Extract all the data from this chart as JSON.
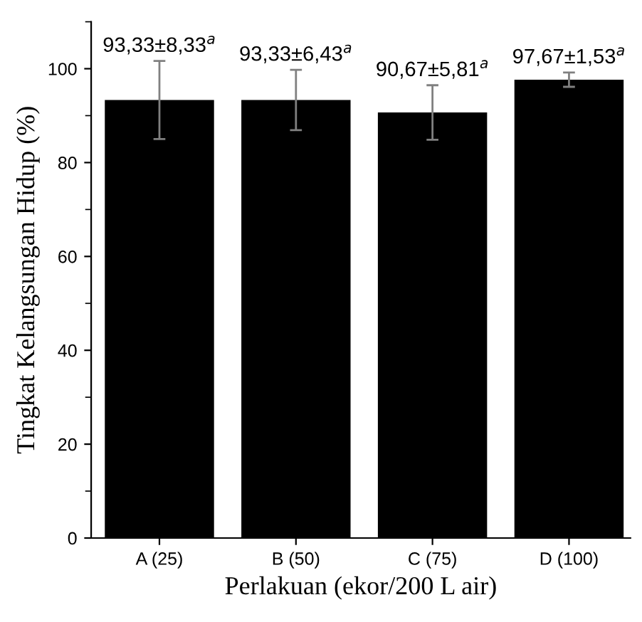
{
  "chart_data": {
    "type": "bar",
    "xlabel": "Perlakuan (ekor/200 L air)",
    "ylabel": "Tingkat Kelangsungan Hidup (%)",
    "categories": [
      "A (25)",
      "B (50)",
      "C (75)",
      "D (100)"
    ],
    "values": [
      93.33,
      93.33,
      90.67,
      97.67
    ],
    "color": "#000000",
    "errors": [
      8.33,
      6.43,
      5.81,
      1.53
    ],
    "value_labels": [
      "93,33±8,33$^{a}$",
      "93,33±6,43$^{a}$",
      "90,67±5,81$^{a}$",
      "97,67±1,53$^{a}$"
    ],
    "ylim": [
      0,
      110
    ],
    "yticks": [
      0,
      20,
      40,
      60,
      80,
      100
    ],
    "grid": false,
    "legend": false
  }
}
